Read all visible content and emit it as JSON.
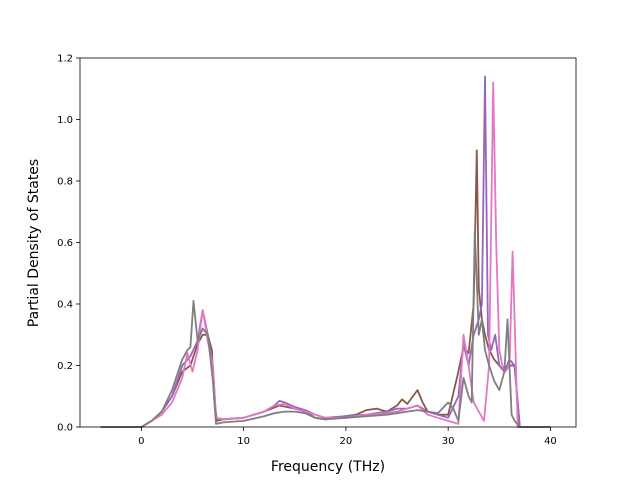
{
  "chart_data": {
    "type": "line",
    "title": "",
    "xlabel": "Frequency (THz)",
    "ylabel": "Partial Density of States",
    "xlim": [
      -6,
      42.5
    ],
    "ylim": [
      0,
      1.2
    ],
    "xticks": [
      0,
      10,
      20,
      30,
      40
    ],
    "xtick_labels": [
      "0",
      "10",
      "20",
      "30",
      "40"
    ],
    "yticks": [
      0.0,
      0.2,
      0.4,
      0.6,
      0.8,
      1.0,
      1.2
    ],
    "ytick_labels": [
      "0.0",
      "0.2",
      "0.4",
      "0.6",
      "0.8",
      "1.0",
      "1.2"
    ],
    "grid": false,
    "legend": "none",
    "series": [
      {
        "color": "#8c564b",
        "x": [
          -4,
          0,
          1,
          2,
          3,
          4,
          4.8,
          5.5,
          6,
          6.5,
          6.9,
          7.1,
          7.4,
          8,
          10,
          12,
          13.5,
          15,
          16,
          17,
          18,
          20,
          21,
          22,
          23,
          24,
          25,
          25.5,
          26,
          27,
          27.5,
          28,
          29,
          30,
          31,
          31.5,
          32,
          32.5,
          32.8,
          33,
          33.3,
          33.6,
          34,
          34.5,
          35,
          35.5,
          36,
          36.5,
          37,
          38,
          40
        ],
        "y": [
          0,
          0,
          0.02,
          0.05,
          0.1,
          0.18,
          0.2,
          0.27,
          0.3,
          0.3,
          0.25,
          0.1,
          0.02,
          0.025,
          0.03,
          0.05,
          0.07,
          0.06,
          0.05,
          0.03,
          0.025,
          0.035,
          0.04,
          0.055,
          0.06,
          0.05,
          0.07,
          0.09,
          0.075,
          0.12,
          0.08,
          0.05,
          0.04,
          0.04,
          0.18,
          0.26,
          0.24,
          0.4,
          0.9,
          0.45,
          0.35,
          0.3,
          0.25,
          0.22,
          0.2,
          0.18,
          0.2,
          0.2,
          0,
          0,
          0
        ]
      },
      {
        "color": "#9467bd",
        "x": [
          -4,
          0,
          1,
          2,
          3,
          4,
          4.8,
          5.5,
          6,
          6.5,
          7,
          7.3,
          8,
          10,
          12,
          13,
          13.5,
          14,
          15,
          16,
          17,
          18,
          20,
          22,
          24,
          25,
          26,
          27,
          28,
          29,
          30,
          31,
          31.5,
          32,
          32.5,
          33,
          33.3,
          33.6,
          33.9,
          34.2,
          34.6,
          35,
          35.5,
          36,
          36.5,
          37,
          38,
          40
        ],
        "y": [
          0,
          0,
          0.02,
          0.05,
          0.1,
          0.2,
          0.23,
          0.28,
          0.38,
          0.3,
          0.2,
          0.03,
          0.025,
          0.03,
          0.05,
          0.07,
          0.085,
          0.08,
          0.065,
          0.055,
          0.04,
          0.03,
          0.035,
          0.04,
          0.05,
          0.06,
          0.06,
          0.07,
          0.05,
          0.04,
          0.03,
          0.1,
          0.27,
          0.2,
          0.3,
          0.35,
          0.4,
          1.14,
          0.3,
          0.25,
          0.3,
          0.2,
          0.18,
          0.22,
          0.2,
          0,
          0,
          0
        ]
      },
      {
        "color": "#e377c2",
        "x": [
          -4,
          0,
          1,
          2,
          3,
          4,
          4.5,
          5,
          5.5,
          6,
          6.5,
          7,
          7.3,
          8,
          10,
          12,
          13,
          14,
          15,
          16,
          17,
          18,
          20,
          22,
          24,
          25,
          26,
          27,
          28,
          29,
          30,
          31,
          31.5,
          32,
          32.5,
          33,
          33.5,
          34,
          34.4,
          34.7,
          35,
          35.3,
          35.6,
          36,
          36.3,
          36.5,
          36.8,
          38,
          40
        ],
        "y": [
          0,
          0,
          0.02,
          0.04,
          0.08,
          0.16,
          0.24,
          0.18,
          0.25,
          0.38,
          0.28,
          0.2,
          0.03,
          0.025,
          0.03,
          0.05,
          0.07,
          0.075,
          0.06,
          0.05,
          0.04,
          0.03,
          0.03,
          0.04,
          0.045,
          0.05,
          0.06,
          0.07,
          0.04,
          0.03,
          0.02,
          0.01,
          0.3,
          0.2,
          0.08,
          0.05,
          0.02,
          0.2,
          1.12,
          0.6,
          0.25,
          0.2,
          0.18,
          0.2,
          0.57,
          0.35,
          0,
          0,
          0
        ]
      },
      {
        "color": "#7f7f7f",
        "x": [
          -4,
          0,
          1,
          2,
          3,
          4,
          4.5,
          4.8,
          5.1,
          5.5,
          6,
          6.5,
          7,
          7.3,
          8,
          10,
          12,
          13,
          14,
          15,
          16,
          17,
          18,
          20,
          22,
          24,
          25,
          26,
          27,
          28,
          29,
          30,
          30.5,
          31,
          31.5,
          32,
          32.3,
          32.6,
          33,
          33.3,
          33.6,
          34,
          34.5,
          35,
          35.5,
          35.8,
          36.2,
          36.5,
          37,
          38,
          40
        ],
        "y": [
          0,
          0,
          0.02,
          0.05,
          0.12,
          0.22,
          0.25,
          0.26,
          0.41,
          0.28,
          0.32,
          0.3,
          0.15,
          0.01,
          0.015,
          0.02,
          0.035,
          0.045,
          0.05,
          0.05,
          0.045,
          0.03,
          0.025,
          0.03,
          0.035,
          0.04,
          0.045,
          0.05,
          0.055,
          0.05,
          0.045,
          0.08,
          0.06,
          0.02,
          0.16,
          0.1,
          0.08,
          0.64,
          0.3,
          0.35,
          0.25,
          0.2,
          0.15,
          0.12,
          0.18,
          0.35,
          0.04,
          0.02,
          0,
          0,
          0
        ]
      }
    ]
  }
}
